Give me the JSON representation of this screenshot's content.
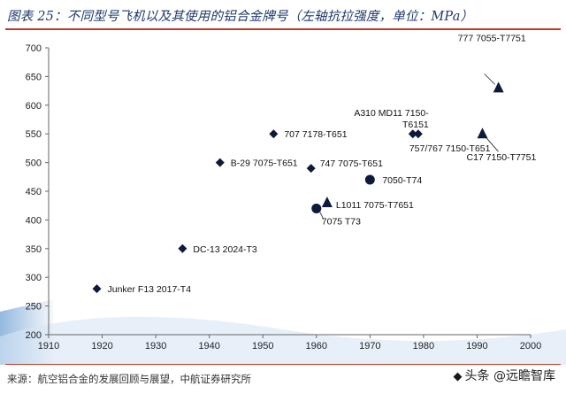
{
  "header": {
    "title": "图表 25：不同型号飞机以及其使用的铝合金牌号（左轴抗拉强度，单位：MPa）"
  },
  "footer": {
    "source": "来源：航空铝合金的发展回顾与展望，中航证券研究所",
    "watermark": "头条 @远瞻智库"
  },
  "chart_data": {
    "type": "scatter",
    "title": "",
    "xlabel": "",
    "ylabel": "",
    "xlim": [
      1910,
      2000
    ],
    "ylim": [
      200,
      700
    ],
    "xticks": [
      1910,
      1920,
      1930,
      1940,
      1950,
      1960,
      1970,
      1980,
      1990,
      2000
    ],
    "yticks": [
      200,
      250,
      300,
      350,
      400,
      450,
      500,
      550,
      600,
      650,
      700
    ],
    "grid": false,
    "marker_color": "#0d1a3a",
    "points": [
      {
        "x": 1919,
        "y": 280,
        "marker": "diamond",
        "label": "Junker F13 2017-T4"
      },
      {
        "x": 1935,
        "y": 350,
        "marker": "diamond",
        "label": "DC-13 2024-T3"
      },
      {
        "x": 1942,
        "y": 500,
        "marker": "diamond",
        "label": "B-29 7075-T651"
      },
      {
        "x": 1952,
        "y": 550,
        "marker": "diamond",
        "label": "707 7178-T651"
      },
      {
        "x": 1959,
        "y": 490,
        "marker": "diamond",
        "label": "747 7075-T651"
      },
      {
        "x": 1960,
        "y": 420,
        "marker": "circle",
        "label": "7075 T73"
      },
      {
        "x": 1962,
        "y": 430,
        "marker": "triangle",
        "label": "L1011 7075-T7651"
      },
      {
        "x": 1970,
        "y": 470,
        "marker": "circle",
        "label": "7050-T74"
      },
      {
        "x": 1978,
        "y": 550,
        "marker": "diamond",
        "label": "A310 MD11 7150-T6151"
      },
      {
        "x": 1979,
        "y": 550,
        "marker": "diamond",
        "label": "757/767 7150-T651"
      },
      {
        "x": 1991,
        "y": 550,
        "marker": "triangle",
        "label": "C17 7150-T7751"
      },
      {
        "x": 1994,
        "y": 630,
        "marker": "triangle",
        "label": "777 7055-T7751"
      }
    ]
  }
}
